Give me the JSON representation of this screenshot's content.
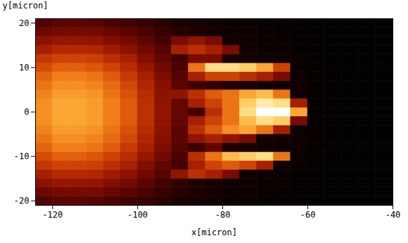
{
  "chart_data": {
    "type": "heatmap",
    "x_label": "x[micron]",
    "y_label": "y[micron]",
    "xlim": [
      -124,
      -40
    ],
    "ylim": [
      -21,
      21
    ],
    "xticks": [
      -120,
      -100,
      -80,
      -60,
      -40
    ],
    "yticks": [
      -20,
      -10,
      0,
      10,
      20
    ],
    "color_range": [
      0,
      1
    ],
    "x_bins": [
      -124,
      -120,
      -116,
      -112,
      -108,
      -104,
      -100,
      -96,
      -92,
      -88,
      -84,
      -80,
      -76,
      -72,
      -68,
      -64,
      -60,
      -56,
      -52,
      -48,
      -44,
      -40
    ],
    "y_bins": [
      -21,
      -19,
      -17,
      -15,
      -13,
      -11,
      -9,
      -7,
      -5,
      -3,
      -1,
      1,
      3,
      5,
      7,
      9,
      11,
      13,
      15,
      17,
      19,
      21
    ],
    "cells": [
      [
        0.21,
        0.23,
        0.23,
        0.22,
        0.2,
        0.18,
        0.15,
        0.12,
        0.08,
        0.06,
        0.05,
        0.03,
        0.03,
        0.02,
        0.02,
        0.01,
        0.01,
        0.01,
        0.01,
        0.01,
        0.01
      ],
      [
        0.27,
        0.29,
        0.29,
        0.29,
        0.26,
        0.23,
        0.19,
        0.15,
        0.11,
        0.08,
        0.06,
        0.04,
        0.03,
        0.03,
        0.02,
        0.02,
        0.01,
        0.01,
        0.01,
        0.01,
        0.01
      ],
      [
        0.34,
        0.36,
        0.36,
        0.35,
        0.32,
        0.29,
        0.23,
        0.18,
        0.13,
        0.09,
        0.07,
        0.05,
        0.04,
        0.03,
        0.03,
        0.02,
        0.01,
        0.01,
        0.01,
        0.01,
        0.01
      ],
      [
        0.4,
        0.43,
        0.43,
        0.42,
        0.38,
        0.34,
        0.28,
        0.22,
        0.35,
        0.45,
        0.4,
        0.3,
        0.05,
        0.04,
        0.03,
        0.02,
        0.01,
        0.01,
        0.01,
        0.01,
        0.01
      ],
      [
        0.47,
        0.5,
        0.5,
        0.49,
        0.45,
        0.4,
        0.32,
        0.25,
        0.18,
        0.4,
        0.5,
        0.55,
        0.5,
        0.4,
        0.04,
        0.03,
        0.01,
        0.01,
        0.01,
        0.01,
        0.01
      ],
      [
        0.52,
        0.56,
        0.56,
        0.54,
        0.5,
        0.44,
        0.36,
        0.28,
        0.2,
        0.45,
        0.6,
        0.75,
        0.8,
        0.85,
        0.6,
        0.03,
        0.02,
        0.01,
        0.01,
        0.01,
        0.01
      ],
      [
        0.57,
        0.62,
        0.62,
        0.6,
        0.55,
        0.48,
        0.4,
        0.31,
        0.22,
        0.16,
        0.25,
        0.09,
        0.07,
        0.05,
        0.04,
        0.04,
        0.02,
        0.01,
        0.01,
        0.01,
        0.01
      ],
      [
        0.6,
        0.65,
        0.65,
        0.63,
        0.58,
        0.51,
        0.42,
        0.33,
        0.23,
        0.35,
        0.4,
        0.35,
        0.3,
        0.06,
        0.05,
        0.04,
        0.02,
        0.01,
        0.01,
        0.01,
        0.01
      ],
      [
        0.63,
        0.68,
        0.68,
        0.66,
        0.6,
        0.53,
        0.44,
        0.34,
        0.24,
        0.45,
        0.55,
        0.65,
        0.7,
        0.6,
        0.4,
        0.04,
        0.02,
        0.01,
        0.01,
        0.01,
        0.01
      ],
      [
        0.65,
        0.7,
        0.7,
        0.68,
        0.62,
        0.55,
        0.45,
        0.35,
        0.25,
        0.4,
        0.5,
        0.6,
        0.75,
        0.85,
        0.8,
        0.3,
        0.02,
        0.01,
        0.01,
        0.01,
        0.01
      ],
      [
        0.65,
        0.7,
        0.7,
        0.68,
        0.62,
        0.55,
        0.45,
        0.35,
        0.25,
        0.18,
        0.45,
        0.6,
        0.85,
        1,
        1,
        0.7,
        0.02,
        0.01,
        0.01,
        0.01,
        0.01
      ],
      [
        0.65,
        0.7,
        0.7,
        0.68,
        0.62,
        0.55,
        0.45,
        0.35,
        0.25,
        0.4,
        0.5,
        0.6,
        0.8,
        0.9,
        0.85,
        0.4,
        0.02,
        0.01,
        0.01,
        0.01,
        0.01
      ],
      [
        0.63,
        0.68,
        0.68,
        0.66,
        0.6,
        0.53,
        0.44,
        0.34,
        0.35,
        0.45,
        0.55,
        0.6,
        0.7,
        0.75,
        0.6,
        0.04,
        0.02,
        0.01,
        0.01,
        0.01,
        0.01
      ],
      [
        0.6,
        0.65,
        0.65,
        0.63,
        0.58,
        0.51,
        0.42,
        0.33,
        0.23,
        0.17,
        0.13,
        0.09,
        0.07,
        0.06,
        0.05,
        0.04,
        0.02,
        0.01,
        0.01,
        0.01,
        0.01
      ],
      [
        0.57,
        0.62,
        0.62,
        0.6,
        0.55,
        0.48,
        0.4,
        0.31,
        0.22,
        0.4,
        0.5,
        0.5,
        0.45,
        0.4,
        0.3,
        0.04,
        0.02,
        0.01,
        0.01,
        0.01,
        0.01
      ],
      [
        0.52,
        0.56,
        0.56,
        0.54,
        0.5,
        0.44,
        0.36,
        0.28,
        0.2,
        0.6,
        0.85,
        0.85,
        0.8,
        0.7,
        0.5,
        0.03,
        0.02,
        0.01,
        0.01,
        0.01,
        0.01
      ],
      [
        0.47,
        0.5,
        0.5,
        0.49,
        0.45,
        0.4,
        0.32,
        0.25,
        0.18,
        0.3,
        0.3,
        0.07,
        0.06,
        0.04,
        0.04,
        0.03,
        0.01,
        0.01,
        0.01,
        0.01,
        0.01
      ],
      [
        0.4,
        0.43,
        0.43,
        0.42,
        0.38,
        0.34,
        0.28,
        0.22,
        0.4,
        0.45,
        0.4,
        0.3,
        0.05,
        0.04,
        0.03,
        0.02,
        0.01,
        0.01,
        0.01,
        0.01,
        0.01
      ],
      [
        0.34,
        0.36,
        0.36,
        0.35,
        0.32,
        0.29,
        0.23,
        0.18,
        0.3,
        0.35,
        0.3,
        0.05,
        0.04,
        0.03,
        0.03,
        0.02,
        0.01,
        0.01,
        0.01,
        0.01,
        0.01
      ],
      [
        0.27,
        0.29,
        0.29,
        0.29,
        0.26,
        0.23,
        0.19,
        0.15,
        0.11,
        0.08,
        0.06,
        0.04,
        0.03,
        0.03,
        0.02,
        0.02,
        0.01,
        0.01,
        0.01,
        0.01,
        0.01
      ],
      [
        0.21,
        0.23,
        0.23,
        0.22,
        0.2,
        0.18,
        0.15,
        0.12,
        0.08,
        0.06,
        0.05,
        0.03,
        0.03,
        0.02,
        0.02,
        0.01,
        0.01,
        0.01,
        0.01,
        0.01,
        0.01
      ]
    ]
  }
}
